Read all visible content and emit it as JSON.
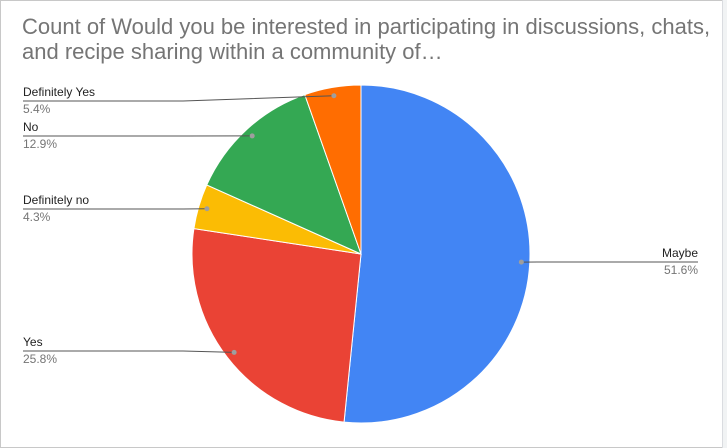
{
  "chart_data": {
    "type": "pie",
    "title": "Count of Would you be interested in participating in discussions, chats, and recipe sharing within a community of…",
    "slices": [
      {
        "label": "Maybe",
        "value": 51.6,
        "pct_label": "51.6%",
        "color": "#4285f4"
      },
      {
        "label": "Yes",
        "value": 25.8,
        "pct_label": "25.8%",
        "color": "#ea4335"
      },
      {
        "label": "Definitely no",
        "value": 4.3,
        "pct_label": "4.3%",
        "color": "#fbbc04"
      },
      {
        "label": "No",
        "value": 12.9,
        "pct_label": "12.9%",
        "color": "#34a853"
      },
      {
        "label": "Definitely Yes",
        "value": 5.4,
        "pct_label": "5.4%",
        "color": "#ff6d01"
      }
    ],
    "start_angle_deg": 0,
    "direction": "clockwise"
  }
}
